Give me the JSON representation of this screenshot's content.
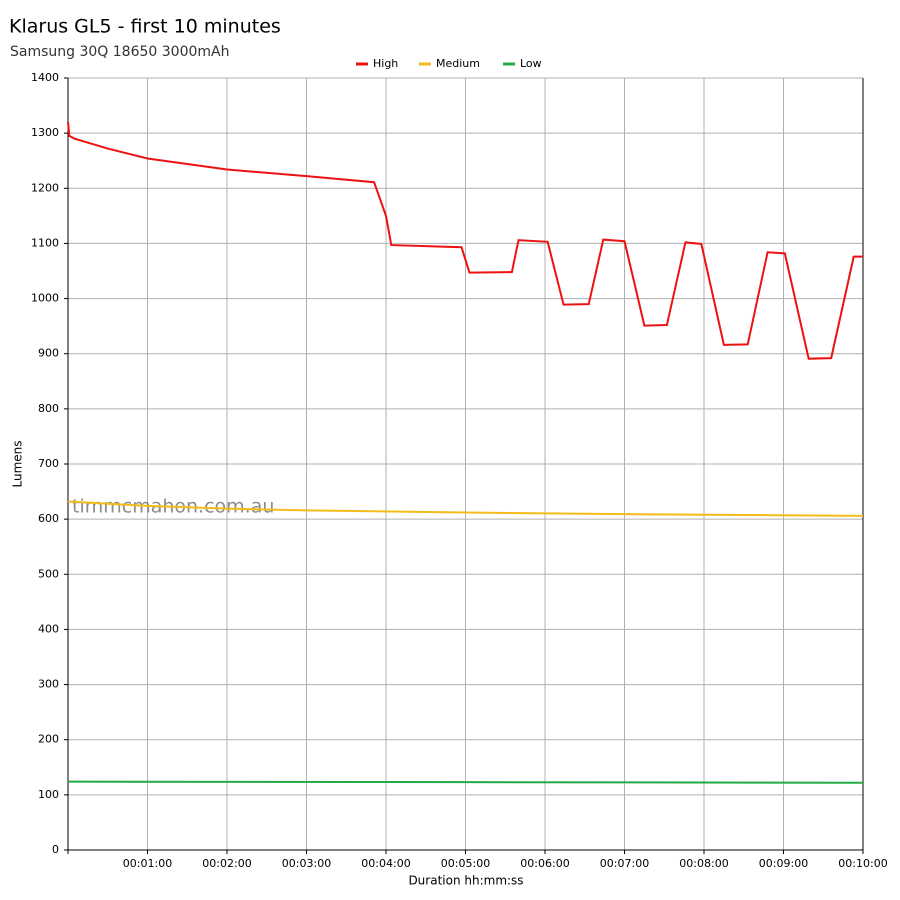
{
  "chart_data": {
    "type": "line",
    "title": "Klarus GL5 - first 10 minutes",
    "subtitle": "Samsung 30Q 18650 3000mAh",
    "x_label": "Duration hh:mm:ss",
    "y_label": "Lumens",
    "annotation": "timmcmahon.com.au",
    "legend": "top",
    "grid": true,
    "xlim": [
      0,
      600
    ],
    "ylim": [
      0,
      1400
    ],
    "xticks": [
      {
        "value": 60,
        "label": "00:01:00"
      },
      {
        "value": 120,
        "label": "00:02:00"
      },
      {
        "value": 180,
        "label": "00:03:00"
      },
      {
        "value": 240,
        "label": "00:04:00"
      },
      {
        "value": 300,
        "label": "00:05:00"
      },
      {
        "value": 360,
        "label": "00:06:00"
      },
      {
        "value": 420,
        "label": "00:07:00"
      },
      {
        "value": 480,
        "label": "00:08:00"
      },
      {
        "value": 540,
        "label": "00:09:00"
      },
      {
        "value": 600,
        "label": "00:10:00"
      }
    ],
    "yticks": [
      0,
      100,
      200,
      300,
      400,
      500,
      600,
      700,
      800,
      900,
      1000,
      1100,
      1200,
      1300,
      1400
    ],
    "series": [
      {
        "name": "High",
        "color": "#ee1111",
        "x": [
          0,
          1,
          5,
          30,
          60,
          120,
          180,
          231,
          240,
          244,
          297,
          303,
          335,
          340,
          362,
          374,
          393,
          404,
          420,
          435,
          452,
          466,
          478,
          495,
          513,
          528,
          541,
          559,
          576,
          593,
          600
        ],
        "values": [
          1320,
          1295,
          1290,
          1272,
          1254,
          1234,
          1222,
          1211,
          1150,
          1097,
          1093,
          1047,
          1048,
          1106,
          1103,
          989,
          990,
          1107,
          1104,
          951,
          952,
          1102,
          1099,
          916,
          917,
          1084,
          1082,
          891,
          892,
          1076,
          1076
        ]
      },
      {
        "name": "Medium",
        "color": "#f2bc1a",
        "x": [
          0,
          60,
          120,
          180,
          300,
          420,
          600
        ],
        "values": [
          632,
          624,
          619,
          616,
          612,
          609,
          606
        ]
      },
      {
        "name": "Low",
        "color": "#22aa44",
        "x": [
          0,
          300,
          600
        ],
        "values": [
          124,
          123,
          122
        ]
      }
    ]
  }
}
